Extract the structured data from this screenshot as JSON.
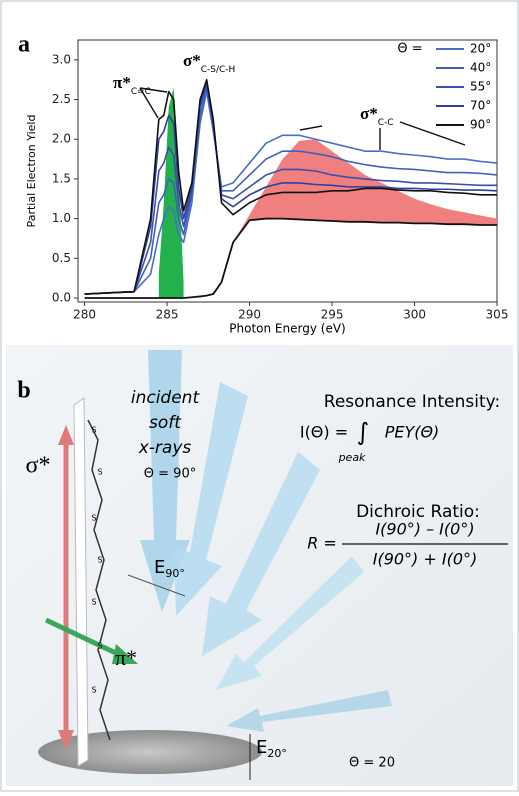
{
  "chart_data": {
    "type": "line",
    "panel_label": "a",
    "x_label": "Photon Energy (eV)",
    "y_label": "Partial Electron Yield",
    "xlim": [
      279.6,
      305
    ],
    "ylim": [
      -0.05,
      3.25
    ],
    "xticks": [
      280,
      285,
      290,
      295,
      300,
      305
    ],
    "yticks": [
      {
        "value": 0,
        "label": "0.0"
      },
      0.5,
      {
        "value": 1,
        "label": "1.0"
      },
      1.5,
      {
        "value": 2,
        "label": "2.0"
      },
      2.5,
      {
        "value": 3,
        "label": "3.0"
      }
    ],
    "legend_title": "Θ =",
    "x": [
      280,
      283,
      284,
      284.5,
      284.8,
      285.1,
      285.4,
      285.7,
      286,
      286.5,
      287,
      287.4,
      287.8,
      288.3,
      289,
      290,
      291,
      292,
      293,
      294,
      295,
      296,
      297,
      298,
      299,
      300,
      301,
      302,
      303,
      304,
      305
    ],
    "series": [
      {
        "name": "20°",
        "color": "#4a6fc9",
        "values": [
          0.05,
          0.08,
          0.3,
          0.8,
          1.0,
          1.15,
          1.1,
          0.8,
          0.7,
          1.2,
          2.2,
          2.6,
          2.1,
          1.4,
          1.45,
          1.7,
          1.95,
          2.05,
          2.05,
          2.0,
          1.95,
          1.9,
          1.85,
          1.85,
          1.82,
          1.8,
          1.78,
          1.75,
          1.75,
          1.72,
          1.7
        ]
      },
      {
        "name": "40°",
        "color": "#4060bb",
        "values": [
          0.05,
          0.08,
          0.5,
          1.2,
          1.3,
          1.5,
          1.45,
          1.0,
          0.8,
          1.3,
          2.3,
          2.65,
          2.15,
          1.35,
          1.35,
          1.55,
          1.75,
          1.85,
          1.85,
          1.82,
          1.78,
          1.72,
          1.68,
          1.65,
          1.63,
          1.62,
          1.6,
          1.58,
          1.58,
          1.57,
          1.55
        ]
      },
      {
        "name": "55°",
        "color": "#3a4fae",
        "values": [
          0.05,
          0.08,
          0.7,
          1.6,
          1.7,
          1.9,
          1.8,
          1.2,
          0.9,
          1.35,
          2.4,
          2.7,
          2.2,
          1.3,
          1.25,
          1.4,
          1.55,
          1.62,
          1.62,
          1.6,
          1.55,
          1.52,
          1.5,
          1.48,
          1.47,
          1.45,
          1.45,
          1.44,
          1.43,
          1.42,
          1.42
        ]
      },
      {
        "name": "70°",
        "color": "#2f3f9a",
        "values": [
          0.05,
          0.08,
          0.9,
          2.0,
          2.1,
          2.3,
          2.2,
          1.4,
          1.0,
          1.4,
          2.45,
          2.72,
          2.2,
          1.25,
          1.15,
          1.3,
          1.4,
          1.45,
          1.45,
          1.43,
          1.42,
          1.4,
          1.4,
          1.4,
          1.38,
          1.38,
          1.37,
          1.37,
          1.36,
          1.36,
          1.35
        ]
      },
      {
        "name": "90°",
        "color": "#111111",
        "values": [
          0.05,
          0.08,
          1.0,
          2.25,
          2.3,
          2.6,
          2.5,
          1.6,
          1.1,
          1.45,
          2.5,
          2.75,
          2.25,
          1.2,
          1.05,
          1.2,
          1.3,
          1.33,
          1.33,
          1.33,
          1.35,
          1.35,
          1.38,
          1.38,
          1.36,
          1.35,
          1.35,
          1.33,
          1.32,
          1.3,
          1.3
        ]
      }
    ],
    "step": {
      "color": "#111111",
      "values": [
        0,
        0,
        0,
        0,
        0,
        0,
        0,
        0,
        0,
        0.01,
        0.02,
        0.03,
        0.05,
        0.2,
        0.7,
        0.98,
        1.0,
        1.0,
        0.99,
        0.98,
        0.97,
        0.96,
        0.96,
        0.95,
        0.95,
        0.94,
        0.94,
        0.93,
        0.93,
        0.92,
        0.92
      ]
    },
    "fills": [
      {
        "color": "#22b14c",
        "values": [
          null,
          null,
          null,
          0.3,
          1.2,
          2.4,
          2.65,
          1.6,
          0.2,
          null,
          null,
          null,
          null,
          null,
          null,
          null,
          null,
          null,
          null,
          null,
          null,
          null,
          null,
          null,
          null,
          null,
          null,
          null,
          null,
          null,
          null
        ]
      },
      {
        "color": "#f08080",
        "values": [
          null,
          null,
          null,
          null,
          null,
          null,
          null,
          null,
          null,
          null,
          null,
          null,
          null,
          null,
          0.7,
          1.05,
          1.4,
          1.75,
          1.98,
          2.0,
          1.85,
          1.7,
          1.55,
          1.45,
          1.35,
          1.25,
          1.18,
          1.12,
          1.08,
          1.04,
          1.0
        ]
      }
    ],
    "annotations": [
      {
        "text": "π*",
        "sub": "C=C"
      },
      {
        "text": "σ*",
        "sub": "C-S/C-H"
      },
      {
        "text": "σ*",
        "sub": "C-C"
      }
    ]
  },
  "diagram": {
    "panel_label": "b",
    "incident": [
      "incident",
      "soft",
      "x-rays"
    ],
    "theta_90": "Θ = 90°",
    "e_field": "E",
    "e_90": "90°",
    "e_20": "20°",
    "theta_20": "Θ = 20",
    "sigma": "σ*",
    "pi": "π*",
    "sulfur": "S",
    "resonance_title": "Resonance Intensity:",
    "resonance_lhs": "I(Θ) =",
    "integral": "∫",
    "resonance_rhs": "PEY(Θ)",
    "peak": "peak",
    "dichroic_title": "Dichroic Ratio:",
    "ratio_lhs": "R =",
    "numerator": "I(90°) – I(0°)",
    "denominator": "I(90°) + I(0°)"
  }
}
